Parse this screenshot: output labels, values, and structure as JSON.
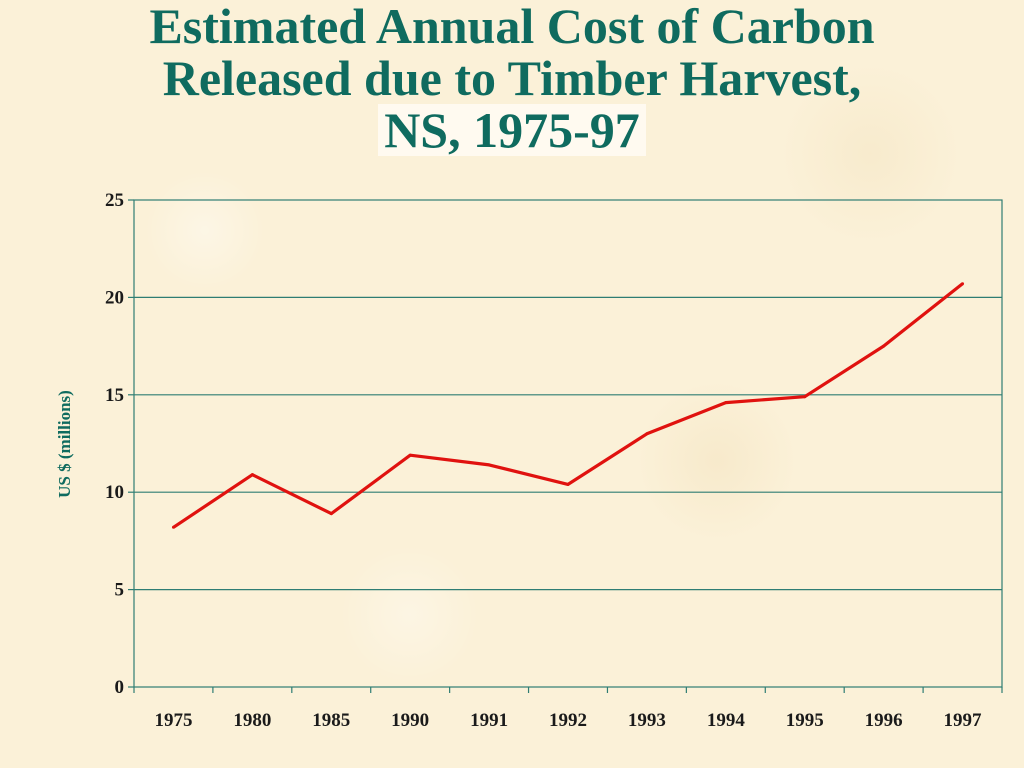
{
  "title": {
    "line1": "Estimated Annual Cost of Carbon",
    "line2": "Released due to Timber Harvest,",
    "line3": "NS, 1975-97"
  },
  "colors": {
    "title": "#0f6b5f",
    "line": "#e0120f",
    "grid": "#2e7d73",
    "background": "#fbf1d8"
  },
  "chart_data": {
    "type": "line",
    "title": "Estimated Annual Cost of Carbon Released due to Timber Harvest, NS, 1975-97",
    "xlabel": "",
    "ylabel": "US $ (millions)",
    "categories": [
      "1975",
      "1980",
      "1985",
      "1990",
      "1991",
      "1992",
      "1993",
      "1994",
      "1995",
      "1996",
      "1997"
    ],
    "series": [
      {
        "values": [
          8.2,
          10.9,
          8.9,
          11.9,
          11.4,
          10.4,
          13.0,
          14.6,
          14.9,
          17.5,
          20.7
        ]
      }
    ],
    "ylim": [
      0,
      25
    ],
    "yticks": [
      0,
      5,
      10,
      15,
      20,
      25
    ],
    "grid": true,
    "legend": "none"
  }
}
